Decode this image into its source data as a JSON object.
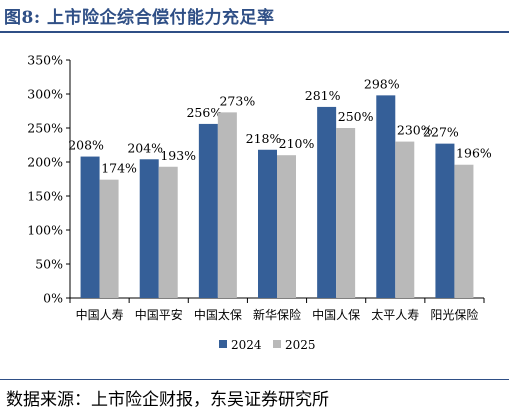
{
  "header": {
    "title": "图8:  上市险企综合偿付能力充足率"
  },
  "footer": {
    "source": "数据来源：上市险企财报，东吴证券研究所"
  },
  "chart_data": {
    "type": "bar",
    "title": "",
    "xlabel": "",
    "ylabel": "",
    "categories": [
      "中国人寿",
      "中国平安",
      "中国太保",
      "新华保险",
      "中国人保",
      "太平人寿",
      "阳光保险"
    ],
    "series": [
      {
        "name": "2024",
        "color": "#355f98",
        "values": [
          208,
          204,
          256,
          218,
          281,
          298,
          227
        ],
        "labels": [
          "208%",
          "204%",
          "256%",
          "218%",
          "281%",
          "298%",
          "227%"
        ]
      },
      {
        "name": "2025",
        "color": "#b9b9b9",
        "values": [
          174,
          193,
          273,
          210,
          250,
          230,
          196
        ],
        "labels": [
          "174%",
          "193%",
          "273%",
          "210%",
          "250%",
          "230%",
          "196%"
        ]
      }
    ],
    "ylim": [
      0,
      350
    ],
    "yticks": [
      "0%",
      "50%",
      "100%",
      "150%",
      "200%",
      "250%",
      "300%",
      "350%"
    ],
    "grid": false,
    "legend_position": "bottom-center"
  }
}
